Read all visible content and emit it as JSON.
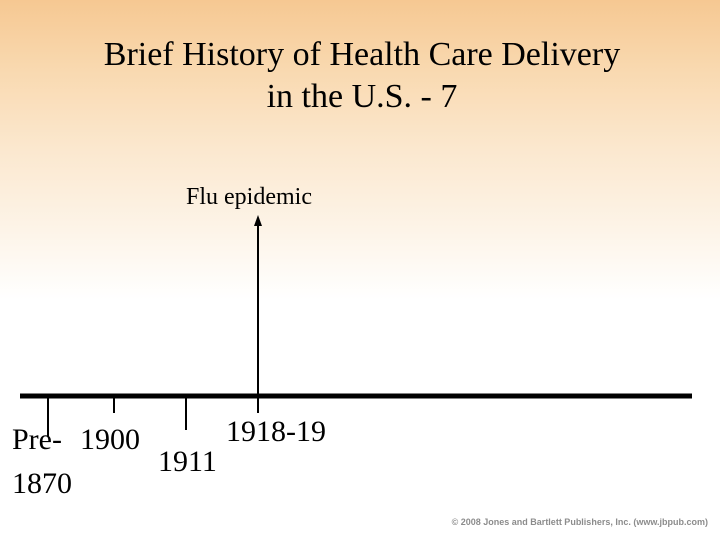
{
  "slide": {
    "title_line1": "Brief History of Health Care Delivery",
    "title_line2": "in the U.S. - 7"
  },
  "timeline": {
    "event_label": "Flu epidemic",
    "years": {
      "pre": "Pre-",
      "y1870": "1870",
      "y1900": "1900",
      "y1911": "1911",
      "y1918": "1918-19"
    }
  },
  "footer": {
    "copyright": "© 2008 Jones and Bartlett Publishers, Inc. (www.jbpub.com)"
  }
}
